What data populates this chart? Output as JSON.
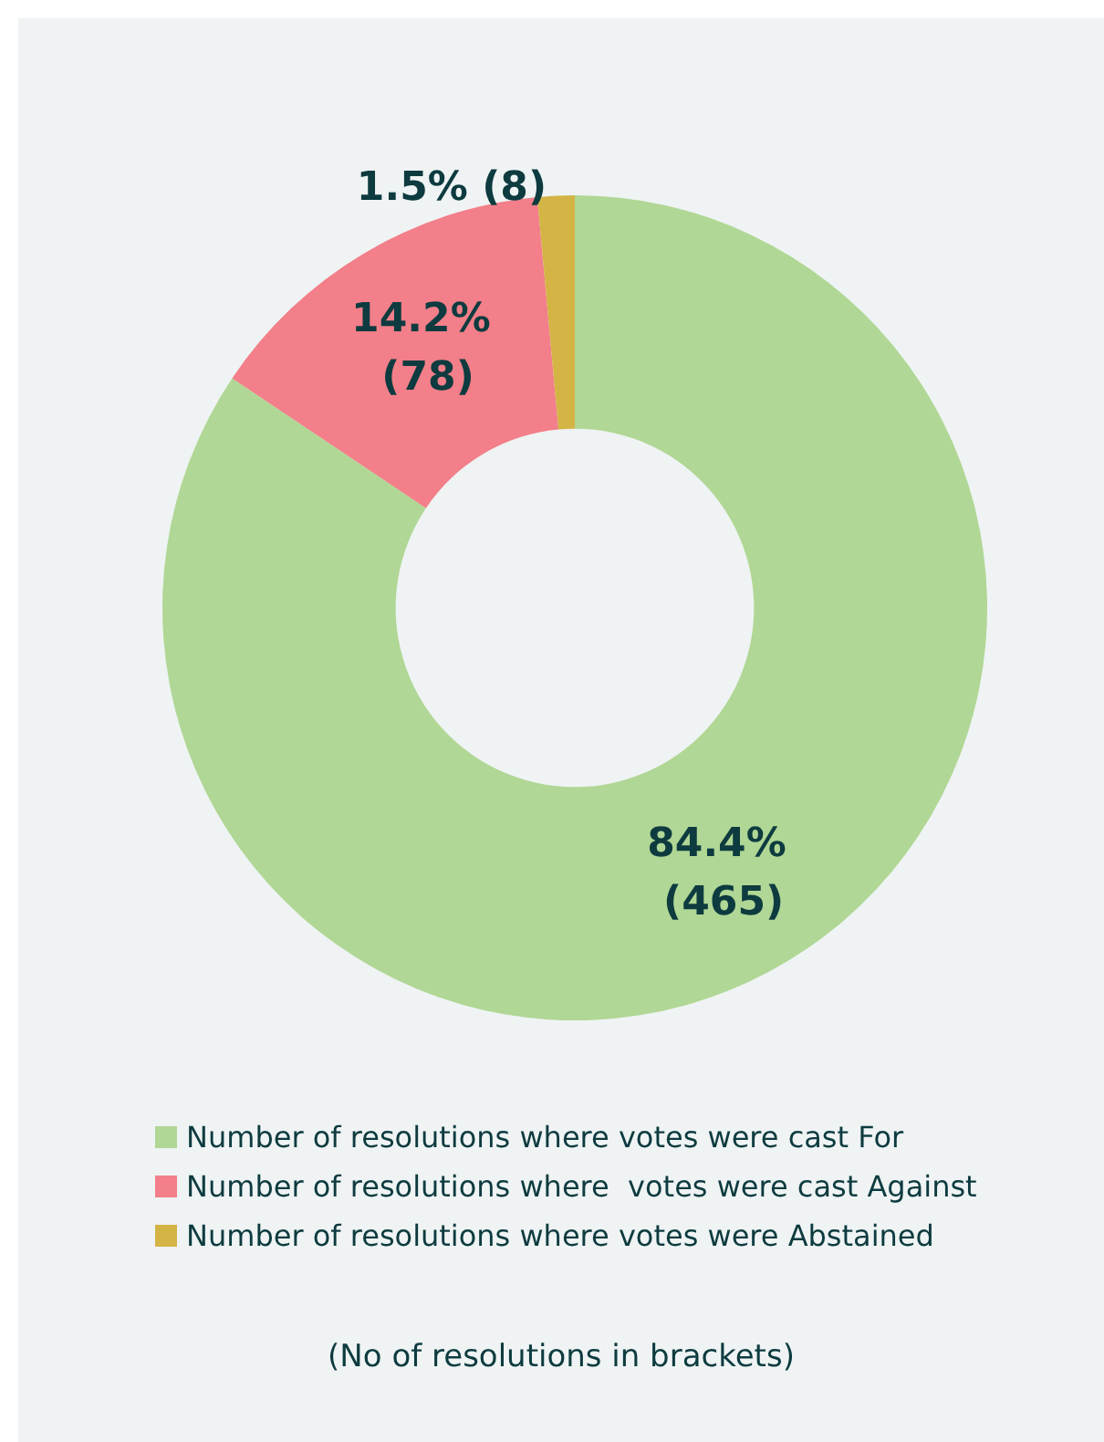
{
  "chart_data": {
    "type": "donut",
    "categories": [
      "Number of resolutions where votes were cast For",
      "Number of resolutions where  votes were cast Against",
      "Number of resolutions where votes were Abstained"
    ],
    "values": [
      465,
      78,
      8
    ],
    "colors": [
      "#b0d795",
      "#f27f89",
      "#d4b445"
    ],
    "value_labels": [
      "84.4% (465)",
      "14.2% (78)",
      "1.5% (8)"
    ],
    "legend": "bottom",
    "annotations": [
      "(No of resolutions in brackets)"
    ]
  }
}
